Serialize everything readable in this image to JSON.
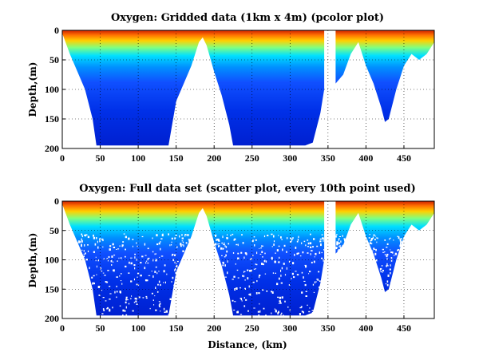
{
  "colors": {
    "colormap": [
      "#00008f",
      "#0000ff",
      "#0080ff",
      "#00ffff",
      "#80ff80",
      "#ffff00",
      "#ff8000",
      "#ff0000",
      "#800000"
    ]
  },
  "chart_data": [
    {
      "type": "heatmap",
      "title": "Oxygen: Gridded data (1km x 4m) (pcolor plot)",
      "xlabel": "",
      "ylabel": "Depth,(m)",
      "xlim": [
        0,
        490
      ],
      "ylim": [
        0,
        200
      ],
      "y_reversed": true,
      "grid": true,
      "xticks": [
        0,
        50,
        100,
        150,
        200,
        250,
        300,
        350,
        400,
        450
      ],
      "yticks": [
        0,
        50,
        100,
        150,
        200
      ],
      "bottom_depth_profile": {
        "distance_km": [
          0,
          10,
          20,
          30,
          40,
          45,
          50,
          60,
          70,
          80,
          90,
          100,
          110,
          120,
          130,
          140,
          150,
          160,
          170,
          180,
          185,
          190,
          200,
          210,
          220,
          225,
          230,
          240,
          250,
          260,
          270,
          280,
          290,
          300,
          310,
          320,
          330,
          340,
          345,
          350,
          360,
          370,
          380,
          385,
          390,
          400,
          410,
          420,
          425,
          430,
          440,
          450,
          460,
          470,
          480,
          490
        ],
        "bottom_depth_m": [
          5,
          40,
          70,
          100,
          150,
          195,
          195,
          195,
          195,
          195,
          195,
          195,
          195,
          195,
          195,
          195,
          120,
          90,
          60,
          20,
          12,
          25,
          70,
          110,
          160,
          195,
          195,
          195,
          195,
          195,
          195,
          195,
          195,
          195,
          195,
          195,
          190,
          140,
          100,
          null,
          90,
          75,
          40,
          30,
          20,
          60,
          90,
          130,
          155,
          150,
          100,
          60,
          40,
          50,
          40,
          20
        ]
      },
      "data_gaps_km": [
        [
          348,
          356
        ]
      ],
      "value_gradient": "highest oxygen (red) in the top ~10 m, decreasing through yellow/cyan to low (blue) values below ~60 m"
    },
    {
      "type": "scatter",
      "title": "Oxygen: Full data set (scatter plot, every 10th point used)",
      "xlabel": "Distance, (km)",
      "ylabel": "Depth,(m)",
      "xlim": [
        0,
        490
      ],
      "ylim": [
        0,
        200
      ],
      "y_reversed": true,
      "grid": true,
      "xticks": [
        0,
        50,
        100,
        150,
        200,
        250,
        300,
        350,
        400,
        450
      ],
      "yticks": [
        0,
        50,
        100,
        150,
        200
      ]
    }
  ]
}
